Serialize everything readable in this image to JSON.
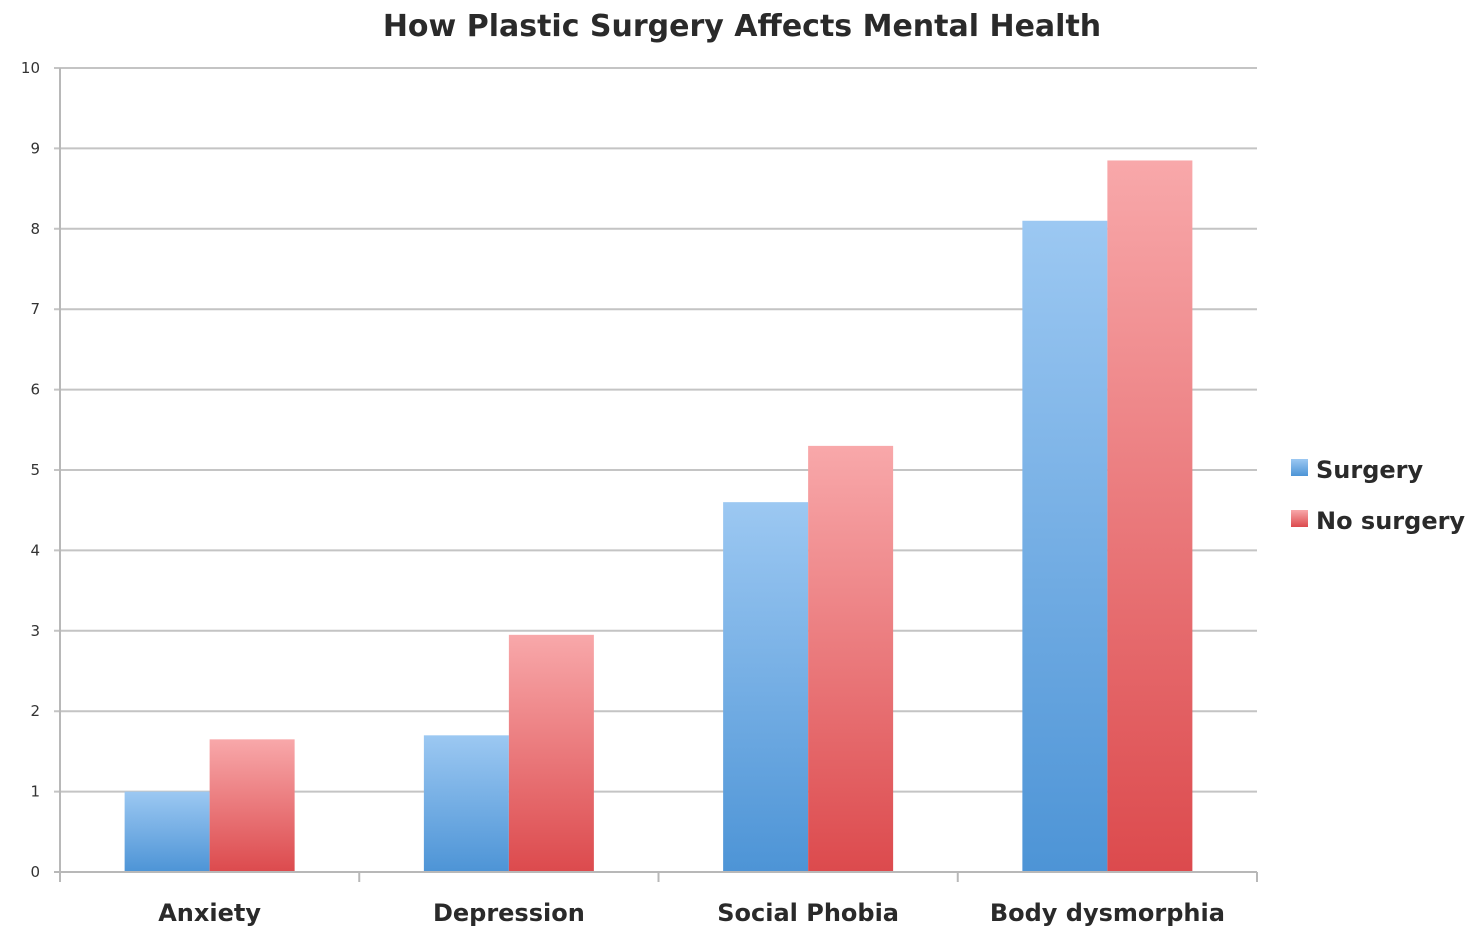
{
  "chart_data": {
    "type": "bar",
    "title": "How Plastic Surgery Affects Mental Health",
    "xlabel": "",
    "ylabel": "",
    "categories": [
      "Anxiety",
      "Depression",
      "Social Phobia",
      "Body dysmorphia"
    ],
    "series": [
      {
        "name": "Surgery",
        "values": [
          1.0,
          1.7,
          4.6,
          8.1
        ],
        "color_top": "#9cc8f2",
        "color_bottom": "#4d94d6"
      },
      {
        "name": "No surgery",
        "values": [
          1.65,
          2.95,
          5.3,
          8.85
        ],
        "color_top": "#f8a8aa",
        "color_bottom": "#dc4a4d"
      }
    ],
    "ylim": [
      0,
      10
    ],
    "yticks": [
      "0",
      "1",
      "2",
      "3",
      "4",
      "5",
      "6",
      "7",
      "8",
      "9",
      "10"
    ],
    "grid": true,
    "legend_position": "right"
  }
}
